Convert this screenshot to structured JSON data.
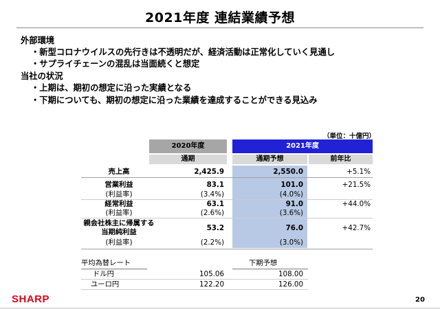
{
  "title": "2021年度 連結業績予想",
  "bullets": [
    {
      "kind": "heading",
      "text": "外部環境"
    },
    {
      "kind": "item",
      "text": "・新型コロナウイルスの先行きは不透明だが、経済活動は正常化していく見通し"
    },
    {
      "kind": "item",
      "text": "・サプライチェーンの混乱は当面続くと想定"
    },
    {
      "kind": "heading",
      "text": "当社の状況"
    },
    {
      "kind": "item",
      "text": "・上期は、期初の想定に沿った実績となる"
    },
    {
      "kind": "item",
      "text": "・下期についても、期初の想定に沿った業績を達成することができる見込み"
    }
  ],
  "table": {
    "unit": "（単位：十億円）",
    "header_2020": "2020年度",
    "header_2021": "2021年度",
    "sub_actual": "通期",
    "sub_forecast": "通期予想",
    "sub_yoy": "前年比",
    "rows": [
      {
        "label": "売上高",
        "v2020": "2,425.9",
        "v2021": "2,550.0",
        "yoy": "+5.1%"
      },
      {
        "label": "営業利益",
        "v2020": "83.1",
        "v2021": "101.0",
        "yoy": "+21.5%"
      },
      {
        "label": "(利益率)",
        "v2020": "(3.4%)",
        "v2021": "(4.0%)",
        "yoy": ""
      },
      {
        "label": "経常利益",
        "v2020": "63.1",
        "v2021": "91.0",
        "yoy": "+44.0%"
      },
      {
        "label": "(利益率)",
        "v2020": "(2.6%)",
        "v2021": "(3.6%)",
        "yoy": ""
      },
      {
        "label": "親会社株主に帰属する",
        "label2": "当期純利益",
        "v2020": "53.2",
        "v2021": "76.0",
        "yoy": "+42.7%"
      },
      {
        "label": "(利益率)",
        "v2020": "(2.2%)",
        "v2021": "(3.0%)",
        "yoy": ""
      }
    ]
  },
  "fx": {
    "title": "平均為替レート",
    "forecast_label": "下期予想",
    "rows": [
      {
        "label": "ドル円",
        "actual": "105.06",
        "forecast": "108.00"
      },
      {
        "label": "ユーロ円",
        "actual": "122.20",
        "forecast": "126.00"
      }
    ]
  },
  "footer": {
    "logo": "SHARP",
    "page": "20"
  },
  "colors": {
    "header_2021": "#2121d6",
    "header_2020": "#a6a6a6",
    "forecast_column": "#b8c9e5",
    "logo": "#e0001a"
  }
}
